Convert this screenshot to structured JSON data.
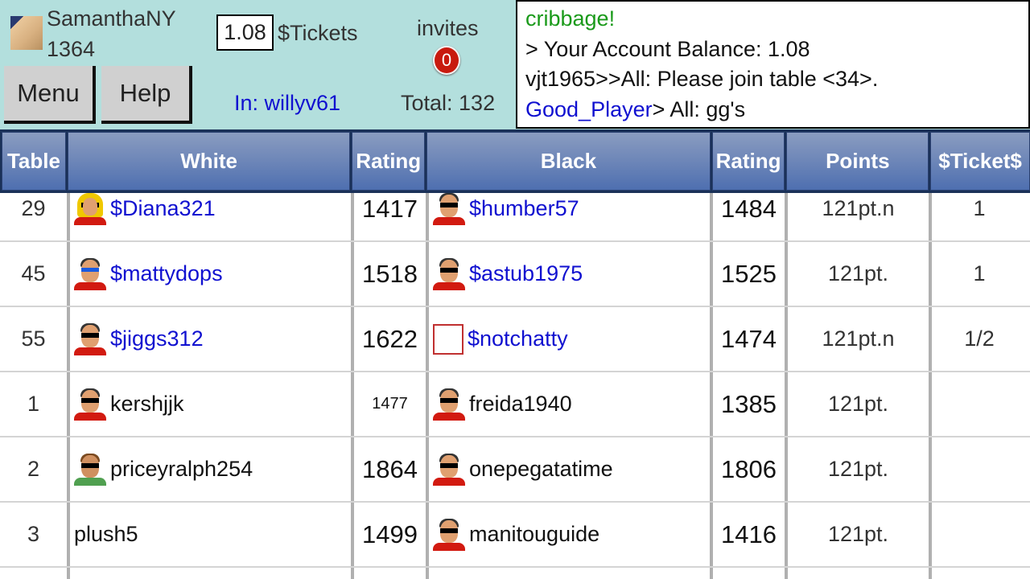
{
  "user": {
    "name": "SamanthaNY",
    "rating": "1364"
  },
  "balance": {
    "value": "1.08",
    "label": "$Tickets"
  },
  "buttons": {
    "menu": "Menu",
    "help": "Help"
  },
  "invites": {
    "label": "invites",
    "count": "0"
  },
  "room": {
    "in": "In: willyv61",
    "total": "Total: 132"
  },
  "chat": {
    "lines": [
      {
        "text": "cribbage!"
      },
      {
        "text": "> Your Account Balance: 1.08"
      },
      {
        "text": "vjt1965>>All: Please join table <34>."
      },
      {
        "user": "Good_Player",
        "text": "> All: gg's"
      }
    ]
  },
  "colors": {
    "header_bg": "#b3dfdd",
    "table_header": "#4e6fb0",
    "link": "#1010d0",
    "chat_green": "#1a9a1a",
    "badge": "#c81a0e"
  },
  "table": {
    "columns": [
      "Table",
      "White",
      "Rating",
      "Black",
      "Rating",
      "Points",
      "$Ticket$"
    ],
    "rows": [
      {
        "table": "29",
        "white": "$Diana321",
        "white_icon": "blond",
        "white_rating": "1417",
        "black": "$humber57",
        "black_icon": "sunglasses",
        "black_rating": "1484",
        "points": "121pt.n",
        "tickets": "1",
        "ticket_game": true
      },
      {
        "table": "45",
        "white": "$mattydops",
        "white_icon": "blue",
        "white_rating": "1518",
        "black": "$astub1975",
        "black_icon": "sunglasses",
        "black_rating": "1525",
        "points": "121pt.",
        "tickets": "1",
        "ticket_game": true
      },
      {
        "table": "55",
        "white": "$jiggs312",
        "white_icon": "sunglasses",
        "white_rating": "1622",
        "black": "$notchatty",
        "black_icon": "empty",
        "black_rating": "1474",
        "points": "121pt.n",
        "tickets": "1/2",
        "ticket_game": true
      },
      {
        "table": "1",
        "white": "kershjjk",
        "white_icon": "sunglasses",
        "white_rating": "1477",
        "black": "freida1940",
        "black_icon": "sunglasses",
        "black_rating": "1385",
        "points": "121pt.",
        "tickets": "",
        "ticket_game": false,
        "white_rating_small": true
      },
      {
        "table": "2",
        "white": "priceyralph254",
        "white_icon": "beard",
        "white_rating": "1864",
        "black": "onepegatatime",
        "black_icon": "sunglasses",
        "black_rating": "1806",
        "points": "121pt.",
        "tickets": "",
        "ticket_game": false
      },
      {
        "table": "3",
        "white": "plush5",
        "white_icon": "",
        "white_rating": "1499",
        "black": "manitouguide",
        "black_icon": "sunglasses",
        "black_rating": "1416",
        "points": "121pt.",
        "tickets": "",
        "ticket_game": false
      },
      {
        "table": "",
        "white": "",
        "white_icon": "",
        "white_rating": "",
        "black": "",
        "black_icon": "",
        "black_rating": "",
        "points": "",
        "tickets": "",
        "ticket_game": false
      }
    ]
  }
}
